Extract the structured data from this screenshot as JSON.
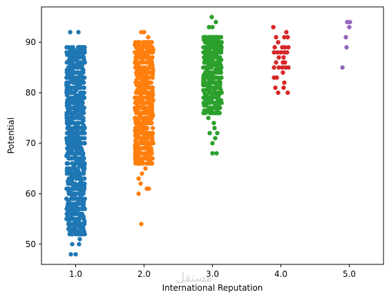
{
  "chart_data": {
    "type": "scatter",
    "subtype": "strip",
    "title": "",
    "xlabel": "International Reputation",
    "ylabel": "Potential",
    "categories": [
      "1.0",
      "2.0",
      "3.0",
      "4.0",
      "5.0"
    ],
    "xlim": [
      0.5,
      5.5
    ],
    "ylim": [
      46,
      97
    ],
    "yticks": [
      50,
      60,
      70,
      80,
      90
    ],
    "grid": false,
    "legend": "none",
    "point_color_default": "#1f77b4",
    "series": [
      {
        "category": "1.0",
        "color": "#1f77b4",
        "ymin": 48,
        "ymax": 92,
        "dense_min": 52,
        "dense_max": 89,
        "sparse_points": [
          [
            0.92,
            92
          ],
          [
            1.04,
            92
          ],
          [
            0.95,
            50
          ],
          [
            1.05,
            50
          ],
          [
            0.93,
            48
          ],
          [
            1.0,
            48
          ],
          [
            1.06,
            51
          ],
          [
            0.9,
            53
          ],
          [
            1.0,
            52
          ]
        ]
      },
      {
        "category": "2.0",
        "color": "#ff7f0e",
        "ymin": 54,
        "ymax": 92,
        "dense_min": 66,
        "dense_max": 90,
        "sparse_points": [
          [
            1.96,
            92
          ],
          [
            2.0,
            92
          ],
          [
            2.06,
            91
          ],
          [
            1.92,
            63
          ],
          [
            1.95,
            62
          ],
          [
            2.04,
            61
          ],
          [
            2.07,
            61
          ],
          [
            1.92,
            60
          ],
          [
            1.96,
            54
          ],
          [
            1.97,
            64
          ],
          [
            2.02,
            65
          ]
        ]
      },
      {
        "category": "3.0",
        "color": "#2ca02c",
        "ymin": 68,
        "ymax": 95,
        "dense_min": 76,
        "dense_max": 91,
        "sparse_points": [
          [
            2.99,
            95
          ],
          [
            3.05,
            94
          ],
          [
            2.95,
            93
          ],
          [
            3.0,
            93
          ],
          [
            3.03,
            73
          ],
          [
            3.07,
            72
          ],
          [
            2.96,
            72
          ],
          [
            3.04,
            71
          ],
          [
            3.0,
            70
          ],
          [
            3.0,
            68
          ],
          [
            3.06,
            68
          ],
          [
            2.94,
            75
          ],
          [
            3.02,
            74
          ]
        ]
      },
      {
        "category": "4.0",
        "color": "#d62728",
        "ymin": 80,
        "ymax": 93,
        "points": [
          [
            3.89,
            93
          ],
          [
            3.93,
            91
          ],
          [
            4.05,
            91
          ],
          [
            3.96,
            90
          ],
          [
            4.08,
            92
          ],
          [
            4.1,
            91
          ],
          [
            3.91,
            89
          ],
          [
            4.02,
            89
          ],
          [
            4.06,
            89
          ],
          [
            4.11,
            89
          ],
          [
            3.95,
            88
          ],
          [
            4.0,
            88
          ],
          [
            4.05,
            88
          ],
          [
            3.9,
            88
          ],
          [
            4.09,
            88
          ],
          [
            4.04,
            87
          ],
          [
            3.97,
            87
          ],
          [
            3.93,
            86
          ],
          [
            4.03,
            86
          ],
          [
            4.06,
            86
          ],
          [
            3.9,
            85
          ],
          [
            3.97,
            85
          ],
          [
            4.02,
            85
          ],
          [
            4.07,
            85
          ],
          [
            4.11,
            85
          ],
          [
            4.03,
            84
          ],
          [
            3.94,
            83
          ],
          [
            3.9,
            83
          ],
          [
            4.05,
            82
          ],
          [
            3.92,
            81
          ],
          [
            4.04,
            81
          ],
          [
            3.96,
            80
          ],
          [
            4.1,
            80
          ]
        ]
      },
      {
        "category": "5.0",
        "color": "#9467bd",
        "ymin": 85,
        "ymax": 94,
        "points": [
          [
            4.97,
            94
          ],
          [
            5.01,
            94
          ],
          [
            5.0,
            93
          ],
          [
            4.95,
            91
          ],
          [
            4.96,
            89
          ],
          [
            4.9,
            85
          ]
        ]
      }
    ]
  },
  "watermark_text": "مستقل"
}
